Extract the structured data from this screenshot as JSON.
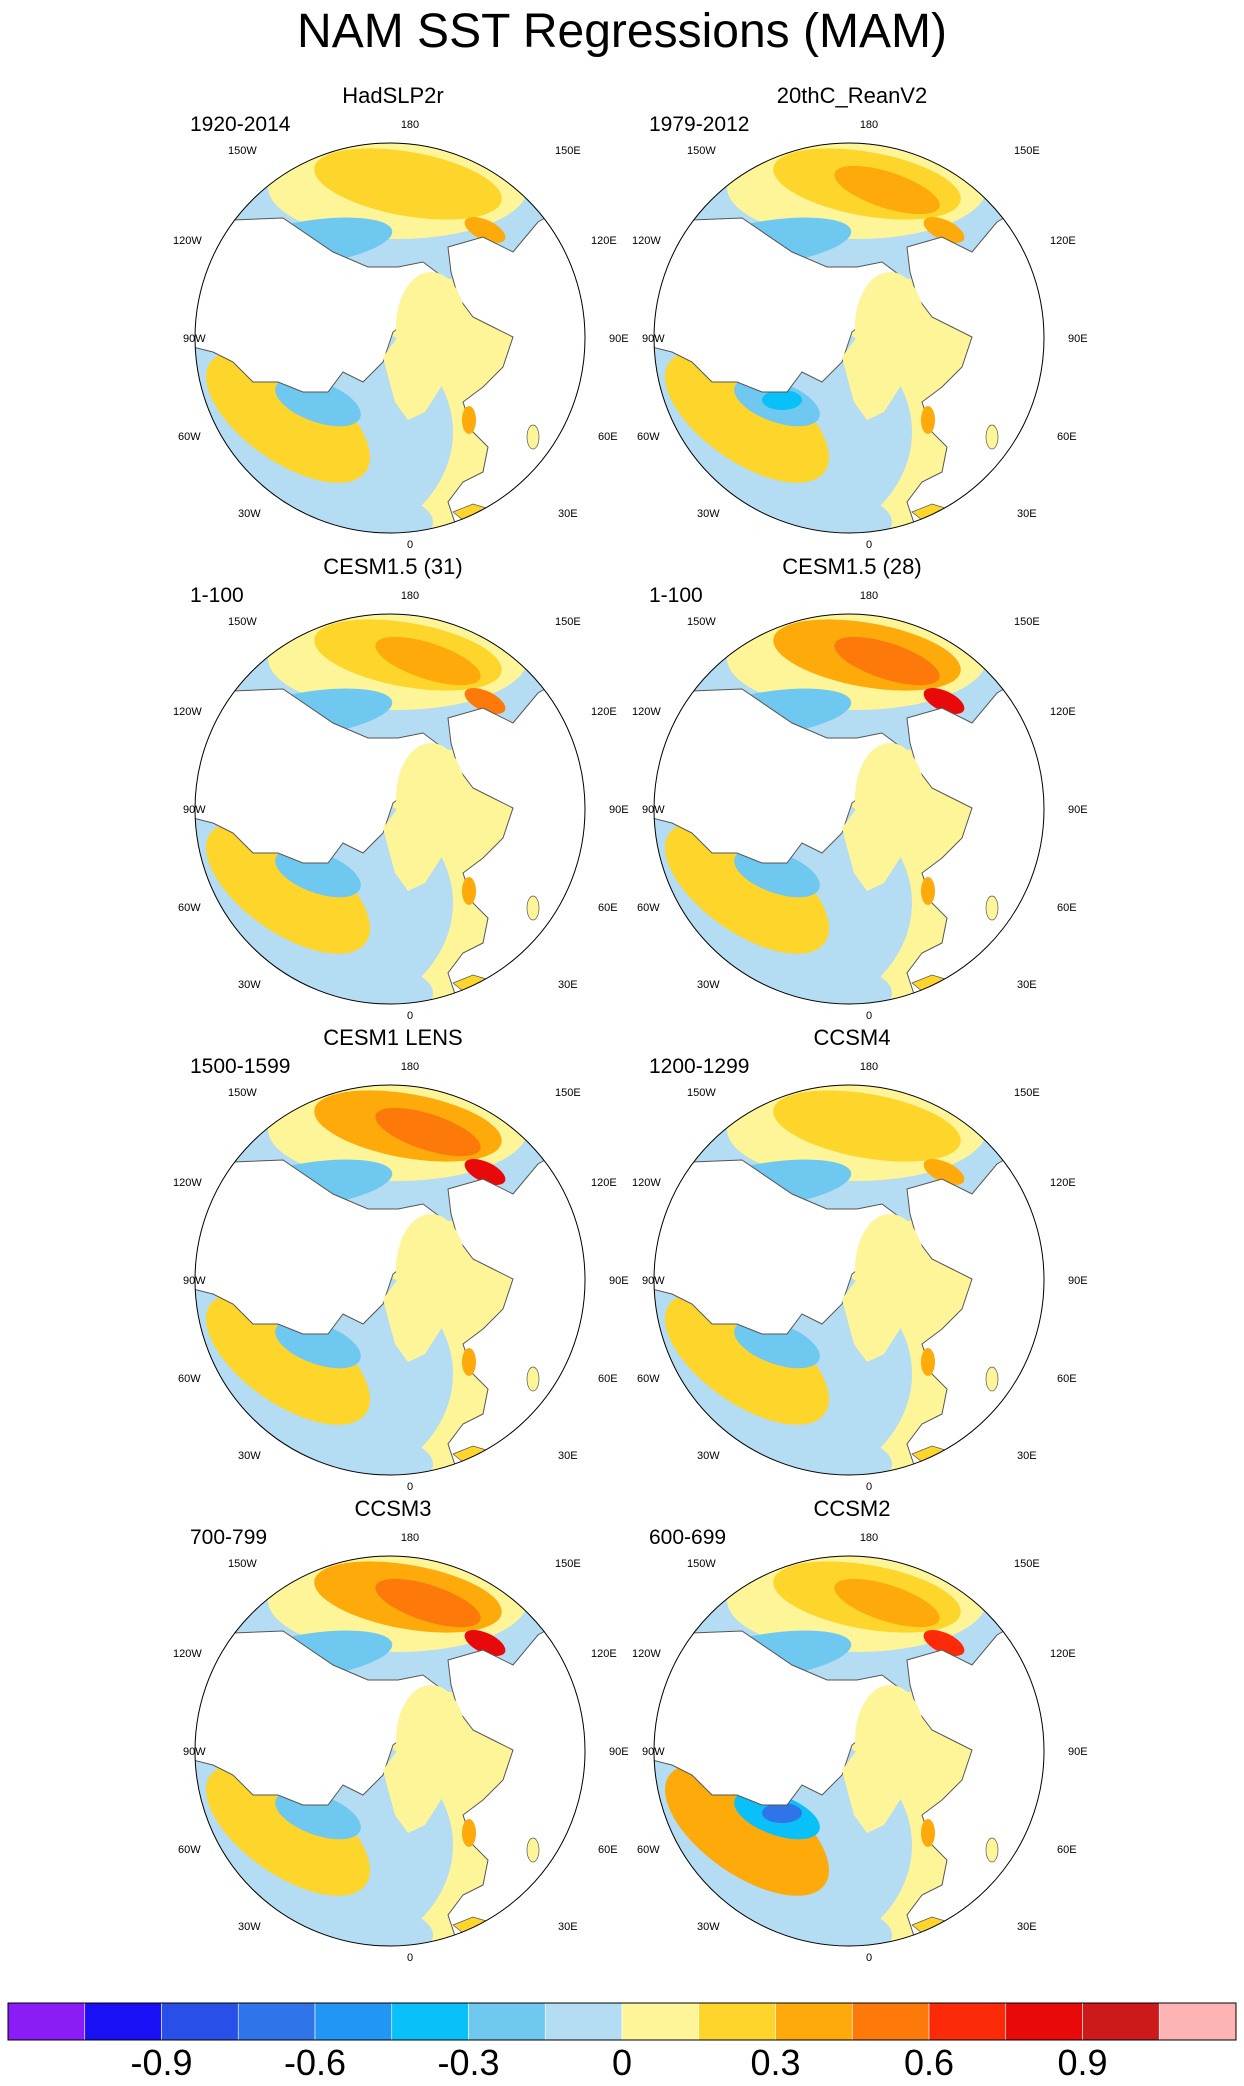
{
  "title": "NAM SST Regressions (MAM)",
  "longitude_labels": {
    "top": "180",
    "bottom": "0",
    "left_90": "90W",
    "right_90": "90E",
    "left_120": "120W",
    "right_120": "120E",
    "left_150": "150W",
    "right_150": "150E",
    "left_60": "60W",
    "right_60": "60E",
    "left_30": "30W",
    "right_30": "30E"
  },
  "panels": [
    {
      "title": "HadSLP2r",
      "period": "1920-2014",
      "pacific_warm": 0.25,
      "atlantic_cool": -0.3,
      "atlantic_warm": 0.2,
      "kamchatka_max": 0.3
    },
    {
      "title": "20thC_ReanV2",
      "period": "1979-2012",
      "pacific_warm": 0.3,
      "atlantic_cool": -0.4,
      "atlantic_warm": 0.25,
      "kamchatka_max": 0.35
    },
    {
      "title": "CESM1.5 (31)",
      "period": "1-100",
      "pacific_warm": 0.35,
      "atlantic_cool": -0.3,
      "atlantic_warm": 0.25,
      "kamchatka_max": 0.5
    },
    {
      "title": "CESM1.5 (28)",
      "period": "1-100",
      "pacific_warm": 0.45,
      "atlantic_cool": -0.3,
      "atlantic_warm": 0.25,
      "kamchatka_max": 0.8
    },
    {
      "title": "CESM1 LENS",
      "period": "1500-1599",
      "pacific_warm": 0.45,
      "atlantic_cool": -0.3,
      "atlantic_warm": 0.2,
      "kamchatka_max": 0.8
    },
    {
      "title": "CCSM4",
      "period": "1200-1299",
      "pacific_warm": 0.25,
      "atlantic_cool": -0.3,
      "atlantic_warm": 0.2,
      "kamchatka_max": 0.35
    },
    {
      "title": "CCSM3",
      "period": "700-799",
      "pacific_warm": 0.45,
      "atlantic_cool": -0.3,
      "atlantic_warm": 0.2,
      "kamchatka_max": 0.75
    },
    {
      "title": "CCSM2",
      "period": "600-699",
      "pacific_warm": 0.35,
      "atlantic_cool": -0.7,
      "atlantic_warm": 0.35,
      "kamchatka_max": 0.65
    }
  ],
  "colorbar": {
    "colors": [
      "#8a1cf5",
      "#1a10f5",
      "#2a4fe8",
      "#2f74e8",
      "#2296f5",
      "#0ac0f8",
      "#6fc8f0",
      "#b4dcf2",
      "#fef598",
      "#fed52a",
      "#fdaa0a",
      "#fd7a0a",
      "#fd2a0a",
      "#e80a0a",
      "#cc1a1a",
      "#fdb4b4"
    ],
    "labels": [
      "-0.9",
      "-0.6",
      "-0.3",
      "0",
      "0.3",
      "0.6",
      "0.9"
    ]
  }
}
